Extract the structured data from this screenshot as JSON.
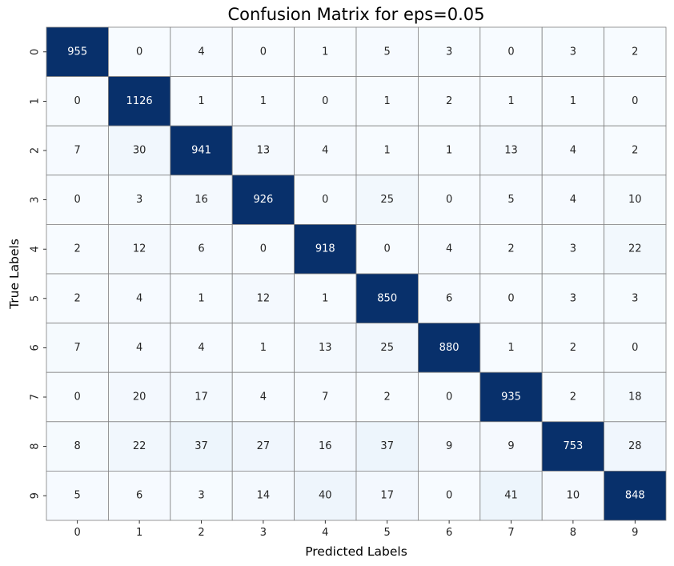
{
  "chart_data": {
    "type": "heatmap",
    "title": "Confusion Matrix for eps=0.05",
    "xlabel": "Predicted Labels",
    "ylabel": "True Labels",
    "x_categories": [
      "0",
      "1",
      "2",
      "3",
      "4",
      "5",
      "6",
      "7",
      "8",
      "9"
    ],
    "y_categories": [
      "0",
      "1",
      "2",
      "3",
      "4",
      "5",
      "6",
      "7",
      "8",
      "9"
    ],
    "colormap": "Blues",
    "colorbar": false,
    "cell_border_color": "#808080",
    "values": [
      [
        955,
        0,
        4,
        0,
        1,
        5,
        3,
        0,
        3,
        2
      ],
      [
        0,
        1126,
        1,
        1,
        0,
        1,
        2,
        1,
        1,
        0
      ],
      [
        7,
        30,
        941,
        13,
        4,
        1,
        1,
        13,
        4,
        2
      ],
      [
        0,
        3,
        16,
        926,
        0,
        25,
        0,
        5,
        4,
        10
      ],
      [
        2,
        12,
        6,
        0,
        918,
        0,
        4,
        2,
        3,
        22
      ],
      [
        2,
        4,
        1,
        12,
        1,
        850,
        6,
        0,
        3,
        3
      ],
      [
        7,
        4,
        4,
        1,
        13,
        25,
        880,
        1,
        2,
        0
      ],
      [
        0,
        20,
        17,
        4,
        7,
        2,
        0,
        935,
        2,
        18
      ],
      [
        8,
        22,
        37,
        27,
        16,
        37,
        9,
        9,
        753,
        28
      ],
      [
        5,
        6,
        3,
        14,
        40,
        17,
        0,
        41,
        10,
        848
      ]
    ]
  }
}
